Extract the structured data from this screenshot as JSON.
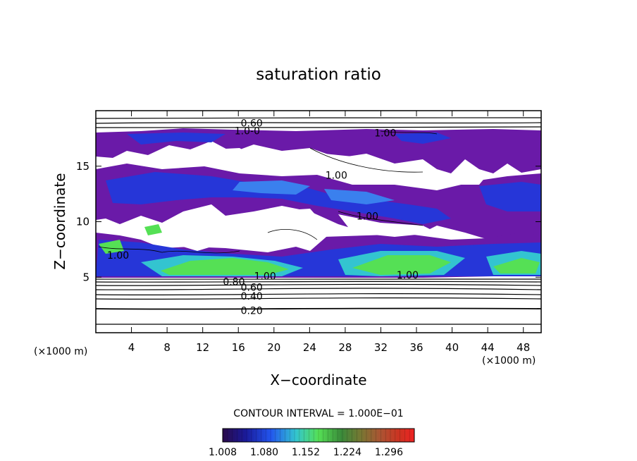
{
  "chart_data": {
    "type": "heatmap",
    "title": "saturation ratio",
    "xlabel": "X−coordinate",
    "ylabel": "Z−coordinate",
    "x_unit_note": "(×1000 m)",
    "y_unit_note": "(×1000 m)",
    "xlim": [
      0,
      50
    ],
    "ylim": [
      0,
      20
    ],
    "x_ticks": [
      "4",
      "8",
      "12",
      "16",
      "20",
      "24",
      "28",
      "32",
      "36",
      "40",
      "44",
      "48"
    ],
    "y_ticks": [
      "5",
      "10",
      "15"
    ],
    "contour_interval_text": "CONTOUR INTERVAL = 1.000E−01",
    "colorbar": {
      "range": [
        1.008,
        1.34
      ],
      "tick_labels": [
        "1.008",
        "1.080",
        "1.152",
        "1.224",
        "1.296"
      ]
    },
    "contour_labels": [
      {
        "text": "0.60",
        "x": 17.5,
        "z": 18.9
      },
      {
        "text": "1.0-0",
        "x": 17.0,
        "z": 18.2
      },
      {
        "text": "1.00",
        "x": 32.5,
        "z": 18.0
      },
      {
        "text": "1.00",
        "x": 27.0,
        "z": 14.2
      },
      {
        "text": "1.00",
        "x": 30.5,
        "z": 10.5
      },
      {
        "text": "1.00",
        "x": 2.5,
        "z": 7.0
      },
      {
        "text": "1.00",
        "x": 19.0,
        "z": 5.1
      },
      {
        "text": "1.00",
        "x": 35.0,
        "z": 5.2
      },
      {
        "text": "0.80",
        "x": 15.5,
        "z": 4.6
      },
      {
        "text": "0.60",
        "x": 17.5,
        "z": 4.1
      },
      {
        "text": "0.40",
        "x": 17.5,
        "z": 3.3
      },
      {
        "text": "0.20",
        "x": 17.5,
        "z": 2.0
      }
    ],
    "supersaturated_regions_approx": [
      {
        "description": "low-level band",
        "x": [
          6,
          16
        ],
        "z": [
          5.2,
          6.6
        ],
        "level": "high"
      },
      {
        "description": "low-level band",
        "x": [
          26,
          38
        ],
        "z": [
          5.2,
          7.0
        ],
        "level": "high"
      },
      {
        "description": "low-level band",
        "x": [
          42,
          50
        ],
        "z": [
          5.3,
          6.8
        ],
        "level": "high"
      },
      {
        "description": "mid-level band",
        "x": [
          8,
          28
        ],
        "z": [
          10.5,
          14.0
        ],
        "level": "low"
      },
      {
        "description": "upper band",
        "x": [
          0,
          50
        ],
        "z": [
          15.5,
          18.0
        ],
        "level": "low"
      }
    ]
  }
}
